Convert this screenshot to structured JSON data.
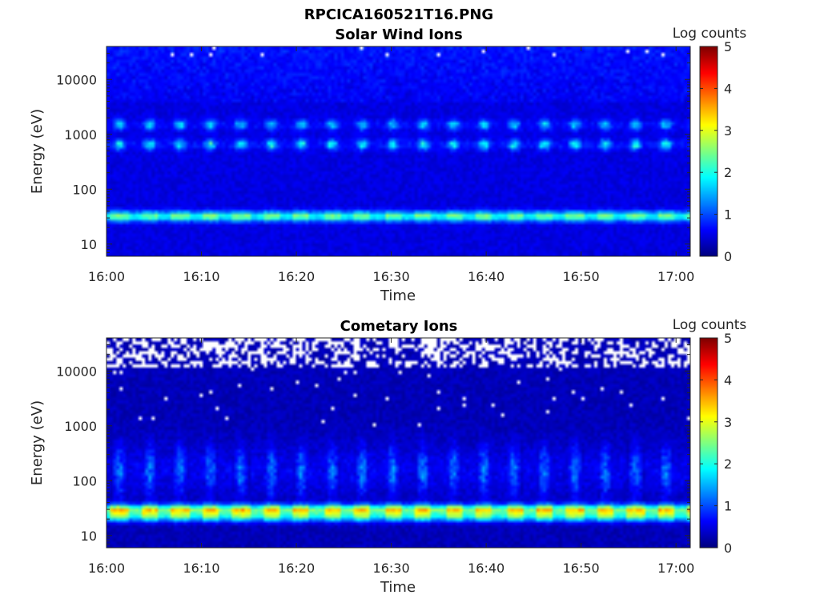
{
  "figure_title": "RPCICA160521T16.PNG",
  "chart_data": [
    {
      "type": "heatmap",
      "title": "Solar Wind Ions",
      "xlabel": "Time",
      "ylabel": "Energy (eV)",
      "colorbar_label": "Log counts",
      "x_ticks": [
        "16:00",
        "16:10",
        "16:20",
        "16:30",
        "16:40",
        "16:50",
        "17:00"
      ],
      "x_range_minutes": [
        0,
        61.5
      ],
      "y_scale": "log",
      "y_range": [
        6,
        40000
      ],
      "y_ticks": [
        {
          "value": 10,
          "label": "10"
        },
        {
          "value": 100,
          "label": "100"
        },
        {
          "value": 1000,
          "label": "1000"
        },
        {
          "value": 10000,
          "label": "10000"
        }
      ],
      "colorbar_range": [
        0,
        5
      ],
      "colorbar_ticks": [
        "0",
        "1",
        "2",
        "3",
        "4",
        "5"
      ],
      "colormap": "jet",
      "sweep_period_minutes": 3.2,
      "features": [
        {
          "energy_ev": 32,
          "log_counts": 2.1,
          "description": "main solar wind proton band, continuous"
        },
        {
          "energy_ev": 650,
          "log_counts": 1.6,
          "description": "alpha/secondary band, intermittent"
        },
        {
          "energy_ev": 1500,
          "log_counts": 1.3,
          "description": "weak upper band, intermittent"
        }
      ],
      "background_log_counts": 0.35
    },
    {
      "type": "heatmap",
      "title": "Cometary Ions",
      "xlabel": "Time",
      "ylabel": "Energy (eV)",
      "colorbar_label": "Log counts",
      "x_ticks": [
        "16:00",
        "16:10",
        "16:20",
        "16:30",
        "16:40",
        "16:50",
        "17:00"
      ],
      "x_range_minutes": [
        0,
        61.5
      ],
      "y_scale": "log",
      "y_range": [
        6,
        40000
      ],
      "y_ticks": [
        {
          "value": 10,
          "label": "10"
        },
        {
          "value": 100,
          "label": "100"
        },
        {
          "value": 1000,
          "label": "1000"
        },
        {
          "value": 10000,
          "label": "10000"
        }
      ],
      "colorbar_range": [
        0,
        5
      ],
      "colorbar_ticks": [
        "0",
        "1",
        "2",
        "3",
        "4",
        "5"
      ],
      "colormap": "jet",
      "sweep_period_minutes": 3.2,
      "features": [
        {
          "energy_ev": 30,
          "log_counts": 2.9,
          "description": "main cometary ion band, continuous"
        },
        {
          "energy_ev": 22,
          "log_counts": 2.0,
          "description": "lower edge of main band"
        },
        {
          "energy_ev": 150,
          "log_counts": 1.0,
          "description": "vertical streaks 60-600 eV"
        }
      ],
      "background_log_counts": 0.15,
      "no_data_above_ev": 12000
    }
  ]
}
